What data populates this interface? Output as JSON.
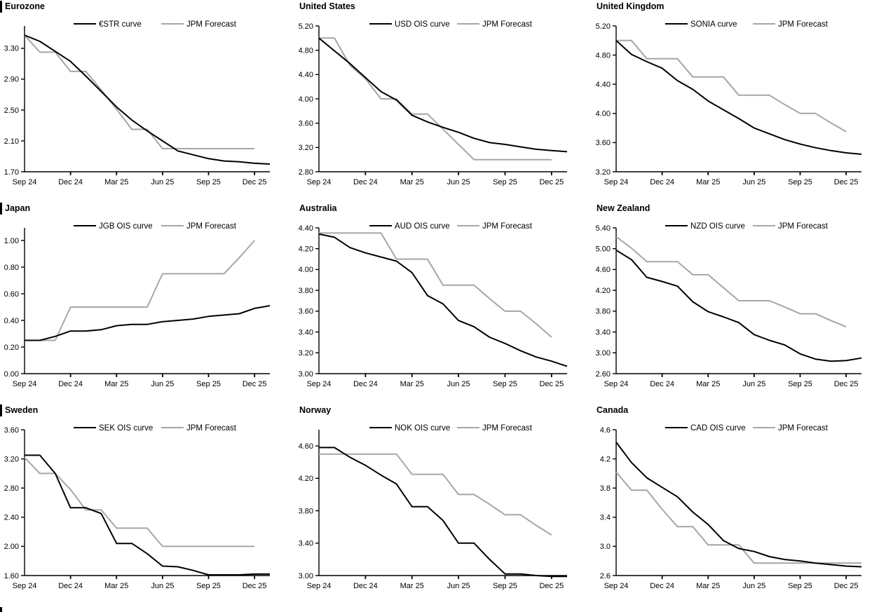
{
  "page": {
    "background": "#ffffff"
  },
  "colors": {
    "market_line": "#000000",
    "forecast_line": "#a6a6a6",
    "axis": "#000000",
    "text": "#000000",
    "section_bar": "#000000"
  },
  "x_tick_labels": [
    "Sep 24",
    "Dec 24",
    "Mar 25",
    "Jun 25",
    "Sep 25",
    "Dec 25"
  ],
  "x_tick_indices": [
    0,
    3,
    6,
    9,
    12,
    15
  ],
  "chart_data": [
    {
      "type": "line",
      "title": "Eurozone",
      "left_bar": true,
      "xlabel": "",
      "ylabel": "",
      "x_tick_labels": [
        "Sep 24",
        "Dec 24",
        "Mar 25",
        "Jun 25",
        "Sep 25",
        "Dec 25"
      ],
      "ylim": [
        1.7,
        3.59
      ],
      "y_ticks": [
        3.3,
        2.9,
        2.5,
        2.1,
        1.7
      ],
      "y_tick_labels": [
        "3.30",
        "2.90",
        "2.50",
        "2.10",
        "1.70"
      ],
      "grid": false,
      "legend_position": "top",
      "series": [
        {
          "name": "€STR curve",
          "role": "market",
          "values": [
            3.47,
            3.39,
            3.26,
            3.13,
            2.94,
            2.74,
            2.54,
            2.37,
            2.23,
            2.1,
            1.97,
            1.92,
            1.87,
            1.84,
            1.83,
            1.81,
            1.8
          ]
        },
        {
          "name": "JPM Forecast",
          "role": "forecast",
          "values": [
            3.47,
            3.25,
            3.25,
            3.0,
            3.0,
            2.76,
            2.51,
            2.25,
            2.25,
            2.0,
            2.0,
            2.0,
            2.0,
            2.0,
            2.0,
            2.0
          ]
        }
      ]
    },
    {
      "type": "line",
      "title": "United States",
      "left_bar": false,
      "xlabel": "",
      "ylabel": "",
      "x_tick_labels": [
        "Sep 24",
        "Dec 24",
        "Mar 25",
        "Jun 25",
        "Sep 25",
        "Dec 25"
      ],
      "ylim": [
        2.8,
        5.2
      ],
      "y_ticks": [
        5.2,
        4.8,
        4.4,
        4.0,
        3.6,
        3.2,
        2.8
      ],
      "y_tick_labels": [
        "5.20",
        "4.80",
        "4.40",
        "4.00",
        "3.60",
        "3.20",
        "2.80"
      ],
      "grid": false,
      "legend_position": "top",
      "series": [
        {
          "name": "USD OIS curve",
          "role": "market",
          "values": [
            5.0,
            4.79,
            4.58,
            4.35,
            4.12,
            3.98,
            3.73,
            3.62,
            3.53,
            3.45,
            3.35,
            3.28,
            3.25,
            3.21,
            3.17,
            3.15,
            3.13
          ]
        },
        {
          "name": "JPM Forecast",
          "role": "forecast",
          "values": [
            5.0,
            5.0,
            4.55,
            4.33,
            4.0,
            4.0,
            3.75,
            3.75,
            3.5,
            3.25,
            3.0,
            3.0,
            3.0,
            3.0,
            3.0,
            3.0
          ]
        }
      ]
    },
    {
      "type": "line",
      "title": "United Kingdom",
      "left_bar": false,
      "xlabel": "",
      "ylabel": "",
      "x_tick_labels": [
        "Sep 24",
        "Dec 24",
        "Mar 25",
        "Jun 25",
        "Sep 25",
        "Dec 25"
      ],
      "ylim": [
        3.2,
        5.2
      ],
      "y_ticks": [
        5.2,
        4.8,
        4.4,
        4.0,
        3.6,
        3.2
      ],
      "y_tick_labels": [
        "5.20",
        "4.80",
        "4.40",
        "4.00",
        "3.60",
        "3.20"
      ],
      "grid": false,
      "legend_position": "top",
      "series": [
        {
          "name": "SONIA curve",
          "role": "market",
          "values": [
            5.0,
            4.81,
            4.71,
            4.62,
            4.45,
            4.33,
            4.17,
            4.05,
            3.93,
            3.8,
            3.72,
            3.64,
            3.58,
            3.53,
            3.49,
            3.46,
            3.44
          ]
        },
        {
          "name": "JPM Forecast",
          "role": "forecast",
          "values": [
            5.0,
            5.0,
            4.75,
            4.75,
            4.75,
            4.5,
            4.5,
            4.5,
            4.25,
            4.25,
            4.25,
            4.12,
            4.0,
            4.0,
            3.87,
            3.75
          ]
        }
      ]
    },
    {
      "type": "line",
      "title": "Japan",
      "left_bar": true,
      "xlabel": "",
      "ylabel": "",
      "x_tick_labels": [
        "Sep 24",
        "Dec 24",
        "Mar 25",
        "Jun 25",
        "Sep 25",
        "Dec 25"
      ],
      "ylim": [
        0.0,
        1.095
      ],
      "y_ticks": [
        1.0,
        0.8,
        0.6,
        0.4,
        0.2,
        0.0
      ],
      "y_tick_labels": [
        "1.00",
        "0.80",
        "0.60",
        "0.40",
        "0.20",
        "0.00"
      ],
      "grid": false,
      "legend_position": "top",
      "series": [
        {
          "name": "JGB OIS curve",
          "role": "market",
          "values": [
            0.25,
            0.25,
            0.28,
            0.32,
            0.32,
            0.33,
            0.36,
            0.37,
            0.37,
            0.39,
            0.4,
            0.41,
            0.43,
            0.44,
            0.45,
            0.49,
            0.51
          ]
        },
        {
          "name": "JPM Forecast",
          "role": "forecast",
          "values": [
            0.25,
            0.25,
            0.25,
            0.5,
            0.5,
            0.5,
            0.5,
            0.5,
            0.5,
            0.75,
            0.75,
            0.75,
            0.75,
            0.75,
            0.87,
            1.0
          ]
        }
      ]
    },
    {
      "type": "line",
      "title": "Australia",
      "left_bar": false,
      "xlabel": "",
      "ylabel": "",
      "x_tick_labels": [
        "Sep 24",
        "Dec 24",
        "Mar 25",
        "Jun 25",
        "Sep 25",
        "Dec 25"
      ],
      "ylim": [
        3.0,
        4.4
      ],
      "y_ticks": [
        4.4,
        4.2,
        4.0,
        3.8,
        3.6,
        3.4,
        3.2,
        3.0
      ],
      "y_tick_labels": [
        "4.40",
        "4.20",
        "4.00",
        "3.80",
        "3.60",
        "3.40",
        "3.20",
        "3.00"
      ],
      "grid": false,
      "legend_position": "top",
      "series": [
        {
          "name": "AUD OIS curve",
          "role": "market",
          "values": [
            4.34,
            4.31,
            4.21,
            4.16,
            4.12,
            4.08,
            3.97,
            3.75,
            3.67,
            3.51,
            3.45,
            3.35,
            3.29,
            3.22,
            3.16,
            3.12,
            3.07
          ]
        },
        {
          "name": "JPM Forecast",
          "role": "forecast",
          "values": [
            4.35,
            4.35,
            4.35,
            4.35,
            4.35,
            4.1,
            4.1,
            4.1,
            3.85,
            3.85,
            3.85,
            3.72,
            3.6,
            3.6,
            3.48,
            3.35
          ]
        }
      ]
    },
    {
      "type": "line",
      "title": "New Zealand",
      "left_bar": false,
      "xlabel": "",
      "ylabel": "",
      "x_tick_labels": [
        "Sep 24",
        "Dec 24",
        "Mar 25",
        "Jun 25",
        "Sep 25",
        "Dec 25"
      ],
      "ylim": [
        2.6,
        5.4
      ],
      "y_ticks": [
        5.4,
        5.0,
        4.6,
        4.2,
        3.8,
        3.4,
        3.0,
        2.6
      ],
      "y_tick_labels": [
        "5.40",
        "5.00",
        "4.60",
        "4.20",
        "3.80",
        "3.40",
        "3.00",
        "2.60"
      ],
      "grid": false,
      "legend_position": "top",
      "series": [
        {
          "name": "NZD OIS curve",
          "role": "market",
          "values": [
            4.97,
            4.79,
            4.45,
            4.37,
            4.28,
            3.98,
            3.79,
            3.69,
            3.58,
            3.35,
            3.24,
            3.15,
            2.98,
            2.88,
            2.84,
            2.85,
            2.9
          ]
        },
        {
          "name": "JPM Forecast",
          "role": "forecast",
          "values": [
            5.23,
            5.01,
            4.75,
            4.75,
            4.75,
            4.5,
            4.5,
            4.25,
            4.0,
            4.0,
            4.0,
            3.88,
            3.75,
            3.75,
            3.62,
            3.5
          ]
        }
      ]
    },
    {
      "type": "line",
      "title": "Sweden",
      "left_bar": true,
      "xlabel": "",
      "ylabel": "",
      "x_tick_labels": [
        "Sep 24",
        "Dec 24",
        "Mar 25",
        "Jun 25",
        "Sep 25",
        "Dec 25"
      ],
      "ylim": [
        1.6,
        3.6
      ],
      "y_ticks": [
        3.6,
        3.2,
        2.8,
        2.4,
        2.0,
        1.6
      ],
      "y_tick_labels": [
        "3.60",
        "3.20",
        "2.80",
        "2.40",
        "2.00",
        "1.60"
      ],
      "grid": false,
      "legend_position": "top",
      "series": [
        {
          "name": "SEK OIS curve",
          "role": "market",
          "values": [
            3.25,
            3.25,
            3.0,
            2.53,
            2.53,
            2.45,
            2.04,
            2.04,
            1.9,
            1.73,
            1.72,
            1.67,
            1.61,
            1.61,
            1.61,
            1.62,
            1.62
          ]
        },
        {
          "name": "JPM Forecast",
          "role": "forecast",
          "values": [
            3.22,
            3.0,
            3.0,
            2.78,
            2.5,
            2.5,
            2.25,
            2.25,
            2.25,
            2.0,
            2.0,
            2.0,
            2.0,
            2.0,
            2.0,
            2.0
          ]
        }
      ]
    },
    {
      "type": "line",
      "title": "Norway",
      "left_bar": false,
      "xlabel": "",
      "ylabel": "",
      "x_tick_labels": [
        "Sep 24",
        "Dec 24",
        "Mar 25",
        "Jun 25",
        "Sep 25",
        "Dec 25"
      ],
      "ylim": [
        3.0,
        4.8
      ],
      "y_ticks": [
        4.6,
        4.2,
        3.8,
        3.4,
        3.0
      ],
      "y_tick_labels": [
        "4.60",
        "4.20",
        "3.80",
        "3.40",
        "3.00"
      ],
      "grid": false,
      "legend_position": "top",
      "series": [
        {
          "name": "NOK OIS curve",
          "role": "market",
          "values": [
            4.58,
            4.58,
            4.46,
            4.36,
            4.24,
            4.13,
            3.85,
            3.85,
            3.68,
            3.4,
            3.4,
            3.2,
            3.02,
            3.02,
            3.0,
            2.99,
            2.99
          ]
        },
        {
          "name": "JPM Forecast",
          "role": "forecast",
          "values": [
            4.5,
            4.5,
            4.5,
            4.5,
            4.5,
            4.5,
            4.25,
            4.25,
            4.25,
            4.0,
            4.0,
            3.88,
            3.75,
            3.75,
            3.62,
            3.5
          ]
        }
      ]
    },
    {
      "type": "line",
      "title": "Canada",
      "left_bar": false,
      "xlabel": "",
      "ylabel": "",
      "x_tick_labels": [
        "Sep 24",
        "Dec 24",
        "Mar 25",
        "Jun 25",
        "Sep 25",
        "Dec 25"
      ],
      "ylim": [
        2.6,
        4.6
      ],
      "y_ticks": [
        4.6,
        4.2,
        3.8,
        3.4,
        3.0,
        2.6
      ],
      "y_tick_labels": [
        "4.6",
        "4.2",
        "3.8",
        "3.4",
        "3.0",
        "2.6"
      ],
      "grid": false,
      "legend_position": "top",
      "series": [
        {
          "name": "CAD OIS curve",
          "role": "market",
          "values": [
            4.43,
            4.15,
            3.94,
            3.81,
            3.68,
            3.47,
            3.3,
            3.08,
            2.97,
            2.93,
            2.86,
            2.82,
            2.8,
            2.77,
            2.75,
            2.73,
            2.72
          ]
        },
        {
          "name": "JPM Forecast",
          "role": "forecast",
          "values": [
            4.02,
            3.77,
            3.77,
            3.51,
            3.27,
            3.27,
            3.02,
            3.02,
            3.02,
            2.77,
            2.77,
            2.77,
            2.77,
            2.77,
            2.77,
            2.77,
            2.77
          ]
        }
      ]
    }
  ]
}
